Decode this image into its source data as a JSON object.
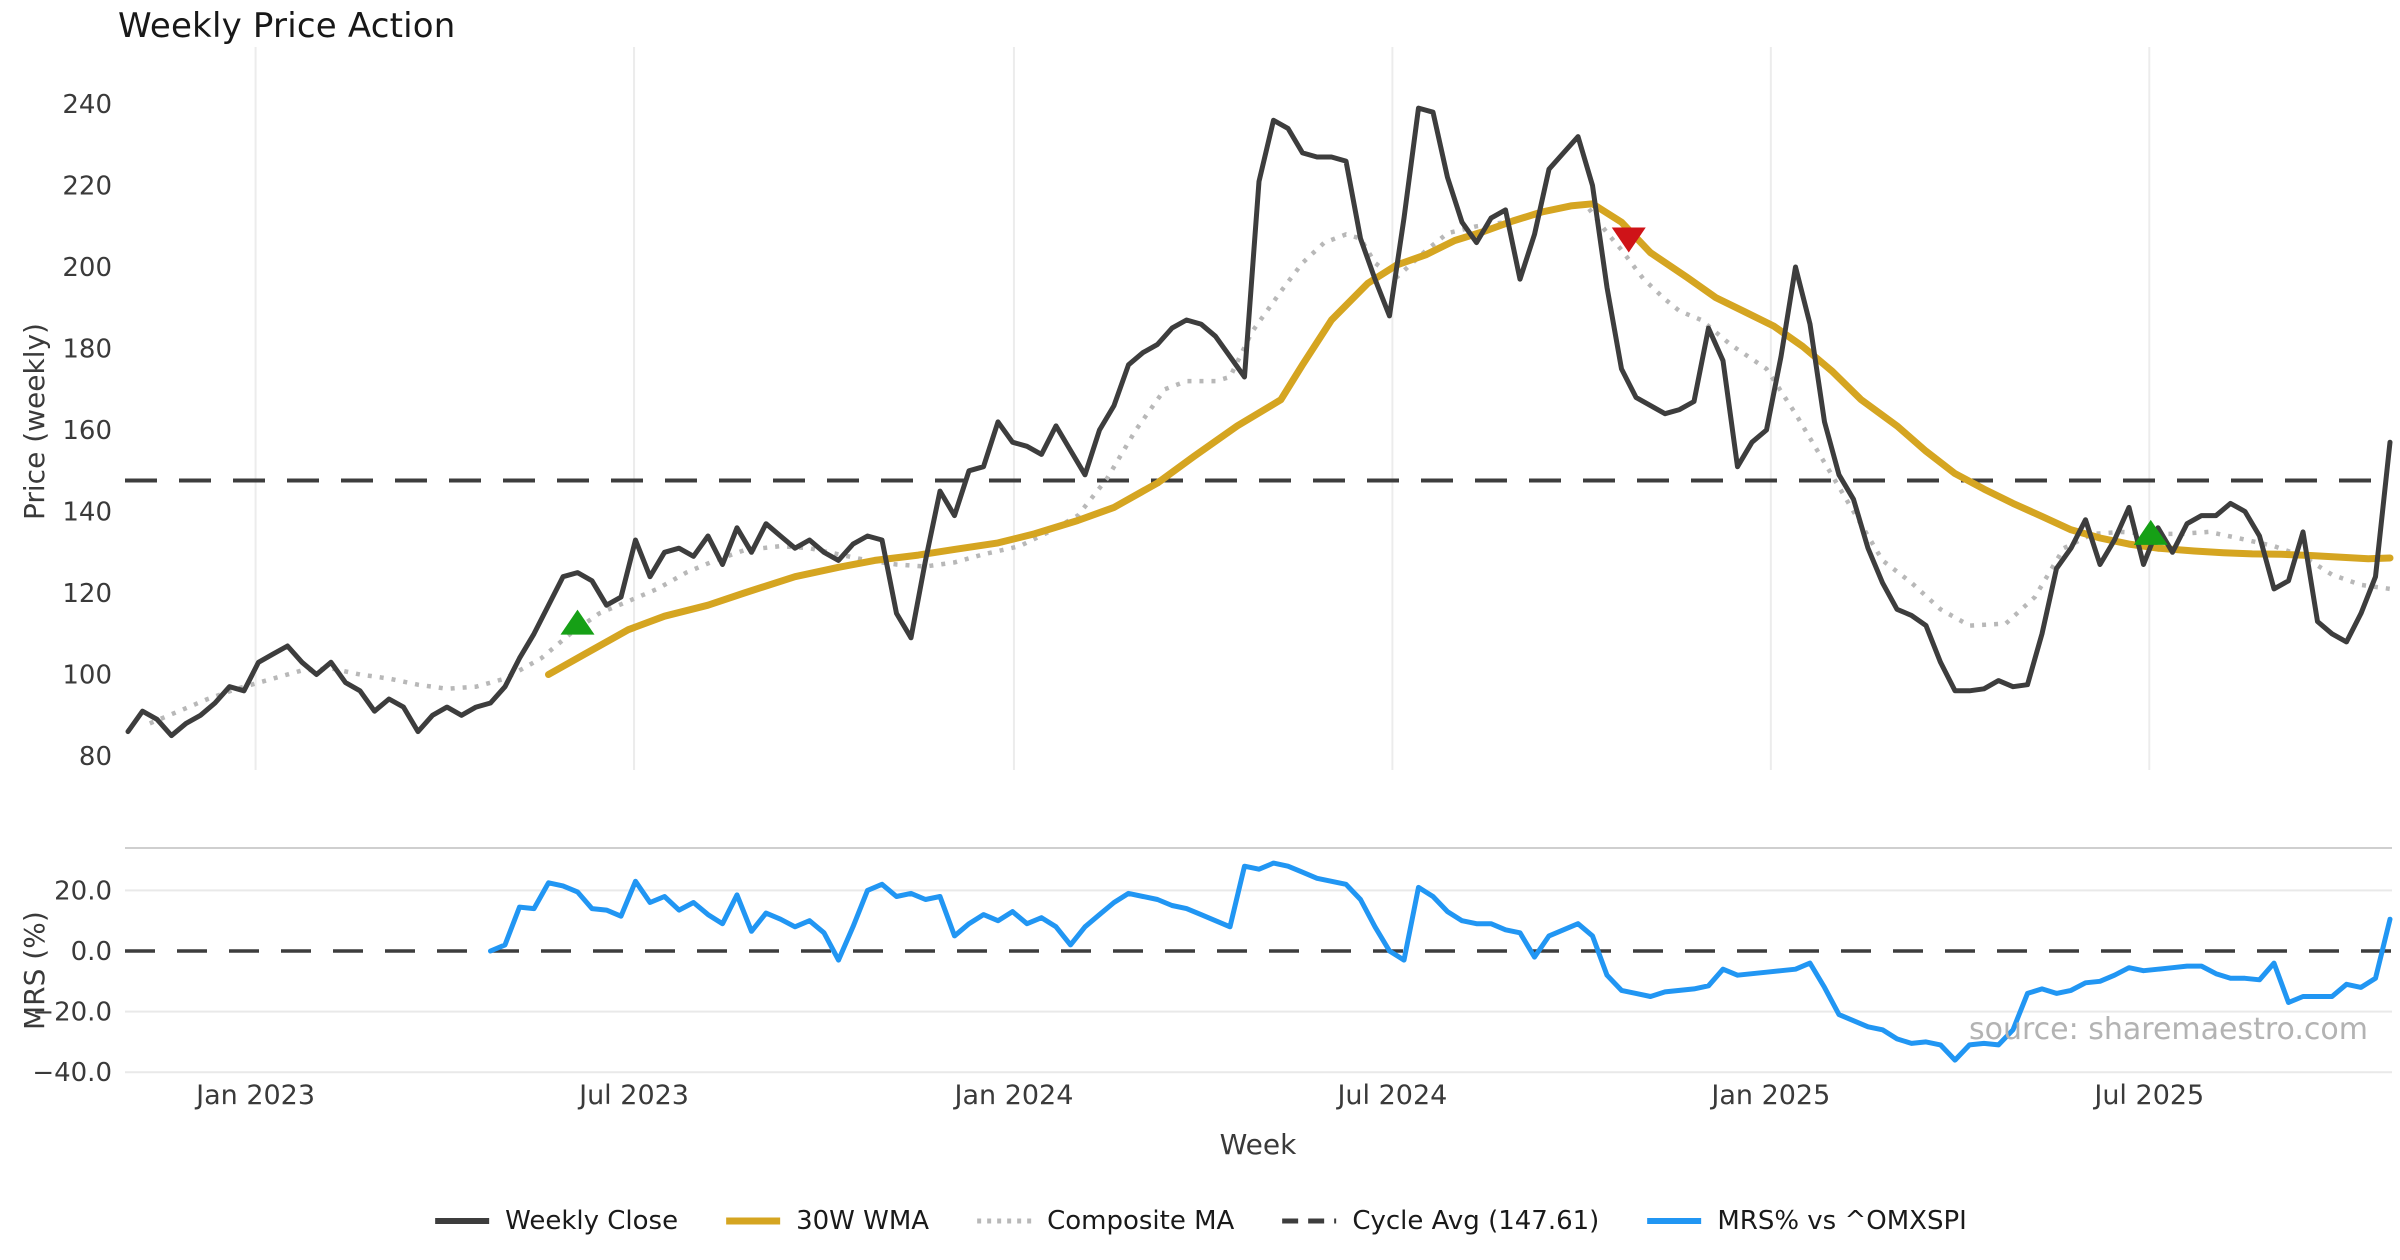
{
  "title": "Weekly Price Action",
  "xlabel": "Week",
  "watermark": "source: sharemaestro.com",
  "legend": {
    "items": [
      {
        "label": "Weekly Close",
        "color": "#3d3d3d",
        "style": "solid"
      },
      {
        "label": "30W WMA",
        "color": "#d5a521",
        "style": "solid"
      },
      {
        "label": "Composite MA",
        "color": "#b8b8b8",
        "style": "dotted"
      },
      {
        "label": "Cycle Avg (147.61)",
        "color": "#3d3d3d",
        "style": "dashed"
      },
      {
        "label": "MRS% vs ^OMXSPI",
        "color": "#2196f3",
        "style": "solid"
      }
    ]
  },
  "chart_data": {
    "type": "line",
    "x_axis": {
      "label": "Week",
      "tick_labels": [
        "Jan 2023",
        "Jul 2023",
        "Jan 2024",
        "Jul 2024",
        "Jan 2025",
        "Jul 2025"
      ],
      "tick_weeks": [
        8.8,
        34.9,
        61.1,
        87.2,
        113.3,
        139.4
      ],
      "unit": "weekly index, week 0 = first plotted week (Nov 2022)"
    },
    "main_panel": {
      "ylabel": "Price (weekly)",
      "y_ticks": [
        240,
        220,
        200,
        180,
        160,
        140,
        120,
        100,
        80
      ],
      "ylim": [
        76,
        254
      ],
      "grid": "vertical-only",
      "series": {
        "weekly_close": {
          "name": "Weekly Close",
          "color": "#3d3d3d",
          "width": 5,
          "start_week": 0,
          "step": 1,
          "values": [
            86,
            91,
            89,
            85,
            88,
            90,
            93,
            97,
            96,
            103,
            105,
            107,
            103,
            100,
            103,
            98,
            96,
            91,
            94,
            92,
            86,
            90,
            92,
            90,
            92,
            93,
            97,
            104,
            110,
            117,
            124,
            125,
            123,
            117,
            119,
            133,
            124,
            130,
            131,
            129,
            134,
            127,
            136,
            130,
            137,
            134,
            131,
            133,
            130,
            128,
            132,
            134,
            133,
            115,
            109,
            128,
            145,
            139,
            150,
            151,
            162,
            157,
            156,
            154,
            161,
            155,
            149,
            160,
            166,
            176,
            179,
            181,
            185,
            187,
            186,
            183,
            178,
            173,
            221,
            236,
            234,
            228,
            227,
            227,
            226,
            207,
            197,
            188,
            212,
            239,
            238,
            222,
            211,
            206,
            212,
            214,
            197,
            208,
            224,
            228,
            232,
            220,
            195,
            175,
            168,
            166,
            164,
            165,
            167,
            185,
            177,
            151,
            157,
            160,
            178,
            200,
            186,
            162,
            149,
            143,
            131,
            122.5,
            116,
            114.5,
            112,
            103,
            96,
            96,
            96.5,
            98.5,
            97,
            97.5,
            110,
            126,
            131,
            138,
            127,
            133,
            141,
            127,
            136,
            130,
            137,
            139,
            139,
            142,
            140,
            134,
            121,
            123,
            135,
            113,
            110,
            108,
            115,
            124,
            157
          ]
        },
        "wma_30w": {
          "name": "30W WMA",
          "color": "#d5a521",
          "width": 7,
          "style": "solid",
          "points": [
            [
              29,
              100
            ],
            [
              31.5,
              105
            ],
            [
              34.5,
              111
            ],
            [
              37,
              114.3
            ],
            [
              40,
              117
            ],
            [
              42.5,
              120
            ],
            [
              46,
              124
            ],
            [
              49,
              126.3
            ],
            [
              51.5,
              128
            ],
            [
              54.5,
              129.3
            ],
            [
              57,
              130.7
            ],
            [
              60,
              132.3
            ],
            [
              62.5,
              134.5
            ],
            [
              65.5,
              137.8
            ],
            [
              68,
              141
            ],
            [
              71,
              147
            ],
            [
              73.5,
              153.5
            ],
            [
              76.5,
              161
            ],
            [
              79.5,
              167.4
            ],
            [
              81,
              176
            ],
            [
              83,
              187
            ],
            [
              85.5,
              196
            ],
            [
              87.5,
              200.5
            ],
            [
              89.5,
              203
            ],
            [
              91.5,
              206.5
            ],
            [
              93.5,
              208.7
            ],
            [
              95.5,
              211.3
            ],
            [
              97.5,
              213.5
            ],
            [
              99.5,
              215
            ],
            [
              101,
              215.5
            ],
            [
              103,
              211
            ],
            [
              105,
              203.5
            ],
            [
              107.5,
              197.5
            ],
            [
              109.5,
              192.5
            ],
            [
              111.5,
              189
            ],
            [
              113.5,
              185.5
            ],
            [
              115.5,
              180.5
            ],
            [
              117.5,
              174.5
            ],
            [
              119.5,
              167.5
            ],
            [
              122,
              161
            ],
            [
              124,
              154.8
            ],
            [
              126,
              149.3
            ],
            [
              128,
              145.5
            ],
            [
              130,
              142
            ],
            [
              132,
              138.8
            ],
            [
              134,
              135.5
            ],
            [
              136,
              133.5
            ],
            [
              138,
              132
            ],
            [
              140,
              131
            ],
            [
              142.5,
              130.3
            ],
            [
              144.5,
              129.9
            ],
            [
              146.5,
              129.6
            ],
            [
              148.5,
              129.5
            ],
            [
              150.5,
              129.2
            ],
            [
              152.5,
              128.8
            ],
            [
              154.5,
              128.4
            ],
            [
              156,
              128.6
            ]
          ]
        },
        "composite_ma": {
          "name": "Composite MA",
          "color": "#b8b8b8",
          "width": 4.5,
          "style": "dotted",
          "points": [
            [
              1.5,
              88
            ],
            [
              3.5,
              91
            ],
            [
              5.5,
              94
            ],
            [
              7.5,
              96.5
            ],
            [
              10,
              99
            ],
            [
              12,
              101
            ],
            [
              14,
              101.5
            ],
            [
              16,
              100
            ],
            [
              18,
              99
            ],
            [
              20,
              97.5
            ],
            [
              22,
              96.5
            ],
            [
              24,
              97
            ],
            [
              26,
              99
            ],
            [
              28.5,
              104
            ],
            [
              30.5,
              110
            ],
            [
              32.5,
              115
            ],
            [
              34.5,
              118
            ],
            [
              36.5,
              121
            ],
            [
              38.5,
              125
            ],
            [
              40.5,
              128
            ],
            [
              42.5,
              130.5
            ],
            [
              45,
              131.5
            ],
            [
              47,
              131
            ],
            [
              49,
              129.5
            ],
            [
              51,
              128
            ],
            [
              53,
              127
            ],
            [
              55,
              126.5
            ],
            [
              57,
              127.5
            ],
            [
              59,
              129.5
            ],
            [
              61.5,
              131.5
            ],
            [
              63.5,
              135
            ],
            [
              65.5,
              139
            ],
            [
              67.5,
              148
            ],
            [
              69.5,
              160
            ],
            [
              71.5,
              170
            ],
            [
              73,
              172
            ],
            [
              75,
              172
            ],
            [
              76,
              173
            ],
            [
              77.5,
              184
            ],
            [
              79.5,
              194
            ],
            [
              81,
              201
            ],
            [
              82.5,
              206
            ],
            [
              84,
              208
            ],
            [
              85,
              207
            ],
            [
              86,
              201
            ],
            [
              87,
              198.3
            ],
            [
              87.5,
              197.5
            ],
            [
              89.5,
              204
            ],
            [
              91,
              208.3
            ],
            [
              93,
              210
            ],
            [
              95,
              211
            ],
            [
              97,
              213
            ],
            [
              99,
              214.8
            ],
            [
              100.5,
              215.5
            ],
            [
              102,
              208.4
            ],
            [
              103,
              204.2
            ],
            [
              104.5,
              197.1
            ],
            [
              106,
              192.1
            ],
            [
              107,
              189.2
            ],
            [
              108.5,
              187
            ],
            [
              110.5,
              181
            ],
            [
              113,
              175
            ],
            [
              115,
              164
            ],
            [
              117,
              152
            ],
            [
              119,
              140
            ],
            [
              121,
              128
            ],
            [
              123,
              122.5
            ],
            [
              125,
              116
            ],
            [
              127,
              112
            ],
            [
              129.5,
              112.5
            ],
            [
              131.5,
              119
            ],
            [
              133.5,
              131
            ],
            [
              135.5,
              134.5
            ],
            [
              137.5,
              135
            ],
            [
              139.5,
              134.5
            ],
            [
              141.5,
              134.5
            ],
            [
              143.5,
              135
            ],
            [
              145.5,
              133.5
            ],
            [
              148,
              131.5
            ],
            [
              150,
              129
            ],
            [
              152,
              124.5
            ],
            [
              154,
              122
            ],
            [
              156,
              121
            ]
          ]
        },
        "cycle_avg_line": {
          "name": "Cycle Avg (147.61)",
          "color": "#3d3d3d",
          "style": "dashed",
          "width": 4,
          "value": 147.61
        }
      },
      "markers": [
        {
          "shape": "triangle-up",
          "color": "#16a016",
          "week": 31,
          "value": 112.5
        },
        {
          "shape": "triangle-down",
          "color": "#cf1318",
          "week": 103.5,
          "value": 207
        },
        {
          "shape": "triangle-up",
          "color": "#16a016",
          "week": 139.5,
          "value": 134.5
        }
      ]
    },
    "lower_panel": {
      "ylabel": "MRS (%)",
      "y_ticks": [
        20,
        0,
        -20,
        -40
      ],
      "y_tick_labels": [
        "20.0",
        "0.0",
        "−20.0",
        "−40.0"
      ],
      "ylim": [
        -46,
        34
      ],
      "grid": "horizontal-only",
      "zero_line_style": "dashed",
      "series": {
        "mrs": {
          "name": "MRS% vs ^OMXSPI",
          "color": "#2196f3",
          "width": 5,
          "start_week": 25,
          "step": 1,
          "values": [
            0,
            2,
            14.5,
            14,
            22.5,
            21.5,
            19.5,
            14,
            13.5,
            11.5,
            23,
            16,
            18,
            13.5,
            16,
            12,
            9,
            18.5,
            6.5,
            12.5,
            10.5,
            8,
            10,
            6,
            -3,
            8,
            20,
            22,
            18,
            19,
            17,
            18,
            5,
            9,
            12,
            10,
            13,
            9,
            11,
            8,
            2,
            8,
            12,
            16,
            19,
            18,
            17,
            15,
            14,
            12,
            10,
            8,
            28,
            27,
            29,
            28,
            26,
            24,
            23,
            22,
            17,
            8,
            0,
            -3,
            21,
            18,
            13,
            10,
            9,
            9,
            7,
            6,
            -2,
            5,
            7,
            9,
            5,
            -8,
            -13,
            -14,
            -15,
            -13.5,
            -13,
            -12.5,
            -11.5,
            -6,
            -8,
            -7.5,
            -7,
            -6.5,
            -6,
            -4,
            -12,
            -21,
            -23,
            -25,
            -26,
            -29,
            -30.5,
            -30,
            -31,
            -36,
            -31,
            -30.5,
            -31,
            -26,
            -14,
            -12.5,
            -14,
            -13,
            -10.5,
            -10,
            -8,
            -5.5,
            -6.5,
            -6,
            -5.5,
            -5,
            -5,
            -7.5,
            -9,
            -9,
            -9.5,
            -4,
            -17,
            -15,
            -15,
            -15,
            -11,
            -12,
            -9,
            10.5
          ]
        }
      }
    }
  }
}
